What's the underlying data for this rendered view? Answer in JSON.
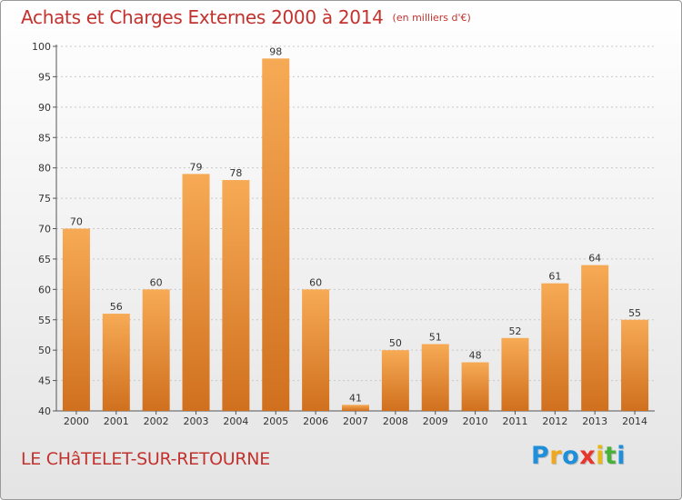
{
  "header": {
    "title": "Achats et Charges Externes 2000 à 2014",
    "subtitle": "(en milliers d'€)"
  },
  "footer": {
    "place": "LE CHâTELET-SUR-RETOURNE",
    "logo_letters": [
      {
        "char": "P",
        "color": "#1e8fd8"
      },
      {
        "char": "r",
        "color": "#f0a81a"
      },
      {
        "char": "o",
        "color": "#1e8fd8"
      },
      {
        "char": "x",
        "color": "#e8362c"
      },
      {
        "char": "i",
        "color": "#e8b81a"
      },
      {
        "char": "t",
        "color": "#49b03a"
      },
      {
        "char": "i",
        "color": "#1e8fd8"
      }
    ]
  },
  "colors": {
    "accent": "#c2322e",
    "bar_light": "#f7aa55",
    "bar_dark": "#d0701e",
    "grid": "#c8c8c8"
  },
  "chart_data": {
    "type": "bar",
    "title": "Achats et Charges Externes 2000 à 2014",
    "subtitle": "(en milliers d'€)",
    "categories": [
      "2000",
      "2001",
      "2002",
      "2003",
      "2004",
      "2005",
      "2006",
      "2007",
      "2008",
      "2009",
      "2010",
      "2011",
      "2012",
      "2013",
      "2014"
    ],
    "values": [
      70,
      56,
      60,
      79,
      78,
      98,
      60,
      41,
      50,
      51,
      48,
      52,
      61,
      64,
      55
    ],
    "ylim": [
      40,
      100
    ],
    "yticks": [
      40,
      45,
      50,
      55,
      60,
      65,
      70,
      75,
      80,
      85,
      90,
      95,
      100
    ],
    "grid": true,
    "xlabel": "",
    "ylabel": ""
  }
}
